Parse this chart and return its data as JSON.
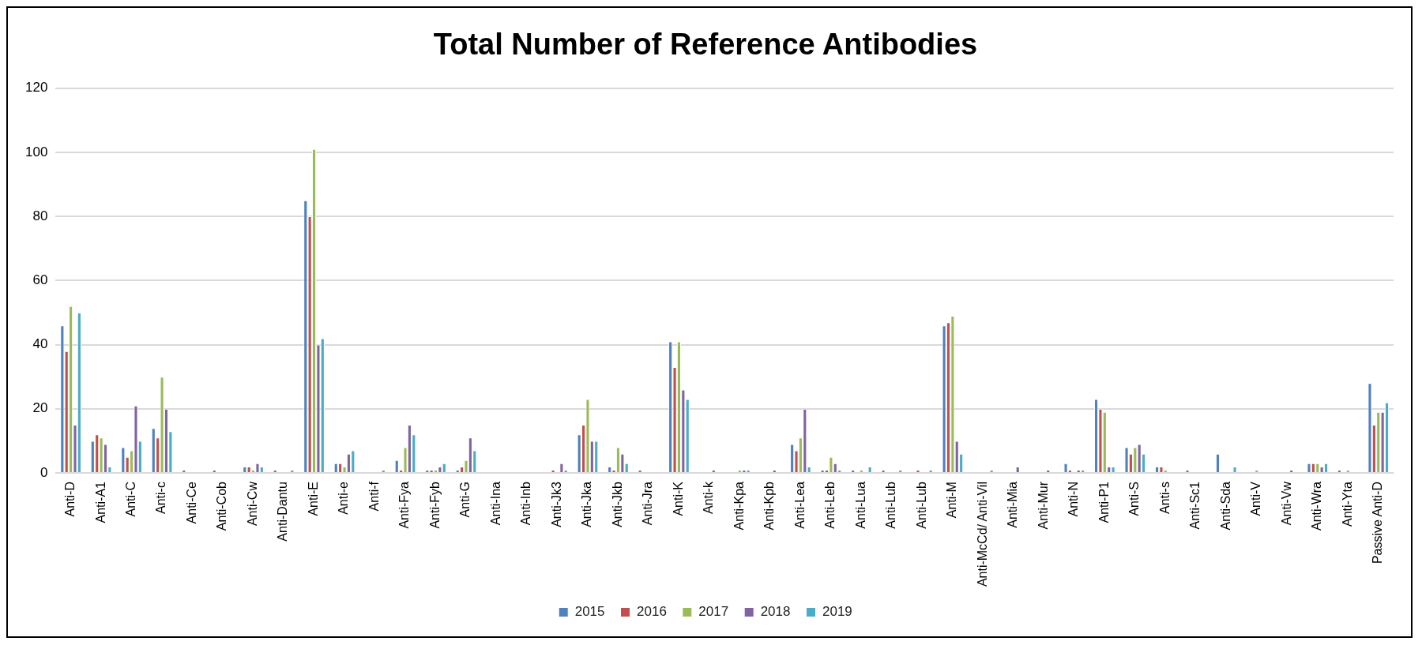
{
  "chart_data": {
    "type": "bar",
    "title": "Total Number of Reference Antibodies",
    "categories": [
      "Anti-D",
      "Anti-A1",
      "Anti-C",
      "Anti-c",
      "Anti-Ce",
      "Anti-Cob",
      "Anti-Cw",
      "Anti-Dantu",
      "Anti-E",
      "Anti-e",
      "Anti-f",
      "Anti-Fya",
      "Anti-Fyb",
      "Anti-G",
      "Anti-Ina",
      "Anti-Inb",
      "Anti-Jk3",
      "Anti-Jka",
      "Anti-Jkb",
      "Anti-Jra",
      "Anti-K",
      "Anti-k",
      "Anti-Kpa",
      "Anti-Kpb",
      "Anti-Lea",
      "Anti-Leb",
      "Anti-Lua",
      "Anti-Lub",
      "Anti-Lub",
      "Anti-M",
      "Anti-McCd/ Anti-Vil",
      "Anti-Mia",
      "Anti-Mur",
      "Anti-N",
      "Anti-P1",
      "Anti-S",
      "Anti-s",
      "Anti-Sc1",
      "Anti-Sda",
      "Anti-V",
      "Anti-Vw",
      "Anti-Wra",
      "Anti-Yta",
      "Passive Anti-D"
    ],
    "series": [
      {
        "name": "2015",
        "color": "#4f81bd",
        "values": [
          46,
          10,
          8,
          14,
          1,
          1,
          2,
          1,
          85,
          3,
          0,
          4,
          1,
          1,
          0,
          0,
          0,
          12,
          2,
          1,
          41,
          0,
          0,
          0,
          9,
          1,
          1,
          1,
          0,
          46,
          0,
          0,
          0,
          3,
          23,
          8,
          2,
          1,
          6,
          0,
          0,
          3,
          1,
          28
        ]
      },
      {
        "name": "2016",
        "color": "#c0504d",
        "values": [
          38,
          12,
          5,
          11,
          0,
          0,
          2,
          0,
          80,
          3,
          0,
          1,
          1,
          2,
          0,
          0,
          1,
          15,
          1,
          0,
          33,
          0,
          0,
          0,
          7,
          1,
          0,
          0,
          1,
          47,
          0,
          0,
          0,
          1,
          20,
          6,
          2,
          0,
          0,
          0,
          0,
          3,
          0,
          15
        ]
      },
      {
        "name": "2017",
        "color": "#9bbb59",
        "values": [
          52,
          11,
          7,
          30,
          0,
          0,
          1,
          0,
          101,
          2,
          0,
          8,
          1,
          4,
          0,
          0,
          0,
          23,
          8,
          0,
          41,
          0,
          1,
          0,
          11,
          5,
          1,
          0,
          0,
          49,
          0,
          0,
          0,
          0,
          19,
          8,
          1,
          0,
          0,
          1,
          0,
          3,
          1,
          19
        ]
      },
      {
        "name": "2018",
        "color": "#8064a2",
        "values": [
          15,
          9,
          21,
          20,
          0,
          0,
          3,
          0,
          40,
          6,
          0,
          15,
          2,
          11,
          0,
          0,
          3,
          10,
          6,
          0,
          26,
          1,
          1,
          1,
          20,
          3,
          0,
          0,
          0,
          10,
          0,
          2,
          1,
          1,
          2,
          9,
          0,
          0,
          0,
          0,
          1,
          2,
          0,
          19
        ]
      },
      {
        "name": "2019",
        "color": "#4bacc6",
        "values": [
          50,
          2,
          10,
          13,
          0,
          0,
          2,
          1,
          42,
          7,
          1,
          12,
          3,
          7,
          0,
          0,
          1,
          10,
          3,
          0,
          23,
          0,
          1,
          0,
          2,
          1,
          2,
          1,
          1,
          6,
          1,
          0,
          0,
          1,
          2,
          6,
          0,
          0,
          2,
          0,
          0,
          3,
          0,
          22
        ]
      }
    ],
    "ylim": [
      0,
      120
    ],
    "yticks": [
      0,
      20,
      40,
      60,
      80,
      100,
      120
    ],
    "grid": "y",
    "legend": "bottom"
  }
}
